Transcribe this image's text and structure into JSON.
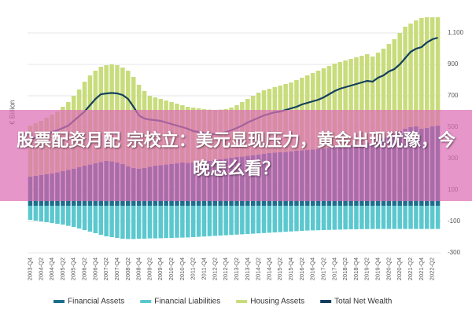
{
  "chart_data": {
    "type": "bar",
    "y_label": "€ Billion",
    "ylim": [
      -300,
      1200
    ],
    "yticks": [
      -300,
      -100,
      100,
      300,
      500,
      700,
      900,
      {
        "value": 1100,
        "label": "1,100"
      }
    ],
    "grid": true,
    "legend": "bottom",
    "categories": [
      "2003-Q4",
      null,
      "2004-Q2",
      null,
      "2004-Q4",
      null,
      "2005-Q2",
      null,
      "2005-Q4",
      null,
      "2006-Q2",
      null,
      "2006-Q4",
      null,
      "2007-Q2",
      null,
      "2007-Q4",
      null,
      "2008-Q2",
      null,
      "2008-Q4",
      null,
      "2009-Q2",
      null,
      "2009-Q4",
      null,
      "2010-Q2",
      null,
      "2010-Q4",
      null,
      "2011-Q2",
      null,
      "2011-Q4",
      null,
      "2012-Q2",
      null,
      "2012-Q4",
      null,
      "2013-Q2",
      null,
      "2013-Q4",
      null,
      "2014-Q2",
      null,
      "2014-Q4",
      null,
      "2015-Q2",
      null,
      "2015-Q4",
      null,
      "2016-Q2",
      null,
      "2016-Q4",
      null,
      "2017-Q2",
      null,
      "2017-Q4",
      null,
      "2018-Q2",
      null,
      "2018-Q4",
      null,
      "2019-Q2",
      null,
      "2019-Q4",
      null,
      "2020-Q2",
      null,
      "2020-Q4",
      null,
      "2021-Q2",
      null,
      "2021-Q4",
      null,
      "2022-Q2",
      null
    ],
    "series": [
      {
        "name": "Financial Assets",
        "color": "#1f6e8c",
        "type": "bar",
        "values": [
          185,
          190,
          195,
          200,
          205,
          212,
          220,
          228,
          235,
          245,
          255,
          262,
          270,
          278,
          285,
          282,
          275,
          265,
          250,
          240,
          235,
          240,
          248,
          255,
          258,
          262,
          265,
          270,
          275,
          272,
          275,
          278,
          282,
          285,
          290,
          295,
          300,
          305,
          310,
          312,
          318,
          322,
          325,
          330,
          335,
          338,
          340,
          342,
          345,
          350,
          352,
          355,
          358,
          362,
          365,
          368,
          372,
          375,
          380,
          385,
          390,
          395,
          400,
          385,
          410,
          430,
          445,
          460,
          475,
          490,
          500,
          505,
          490,
          495,
          505,
          510
        ]
      },
      {
        "name": "Financial Liabilities",
        "color": "#5bc8cf",
        "type": "bar",
        "values": [
          -90,
          -95,
          -100,
          -105,
          -110,
          -115,
          -120,
          -128,
          -135,
          -145,
          -155,
          -165,
          -175,
          -185,
          -195,
          -200,
          -205,
          -210,
          -212,
          -212,
          -210,
          -210,
          -208,
          -208,
          -207,
          -206,
          -205,
          -204,
          -203,
          -202,
          -200,
          -198,
          -196,
          -194,
          -192,
          -190,
          -188,
          -186,
          -184,
          -182,
          -180,
          -178,
          -176,
          -174,
          -172,
          -170,
          -168,
          -166,
          -164,
          -162,
          -160,
          -158,
          -157,
          -156,
          -155,
          -154,
          -153,
          -152,
          -151,
          -150,
          -150,
          -149,
          -149,
          -148,
          -148,
          -148,
          -148,
          -148,
          -148,
          -148,
          -148,
          -148,
          -148,
          -148,
          -148,
          -148
        ]
      },
      {
        "name": "Housing Assets",
        "color": "#c8dc7c",
        "type": "bar",
        "values": [
          325,
          335,
          345,
          360,
          375,
          388,
          410,
          432,
          465,
          495,
          535,
          568,
          590,
          607,
          610,
          618,
          620,
          615,
          610,
          580,
          535,
          490,
          452,
          435,
          422,
          408,
          395,
          380,
          365,
          358,
          350,
          342,
          333,
          327,
          320,
          317,
          315,
          320,
          330,
          348,
          362,
          378,
          395,
          405,
          410,
          417,
          425,
          433,
          440,
          450,
          463,
          475,
          487,
          498,
          510,
          522,
          533,
          540,
          545,
          550,
          555,
          560,
          565,
          565,
          565,
          570,
          585,
          600,
          625,
          650,
          660,
          675,
          705,
          705,
          695,
          690
        ]
      },
      {
        "name": "Total Net Wealth",
        "color": "#14405e",
        "type": "line",
        "values": [
          420,
          435,
          445,
          455,
          470,
          480,
          495,
          510,
          540,
          570,
          600,
          640,
          680,
          710,
          715,
          718,
          715,
          705,
          680,
          630,
          575,
          555,
          548,
          545,
          540,
          530,
          520,
          510,
          500,
          490,
          475,
          470,
          462,
          458,
          455,
          460,
          470,
          480,
          495,
          510,
          530,
          545,
          560,
          575,
          585,
          595,
          600,
          610,
          620,
          630,
          645,
          655,
          665,
          675,
          690,
          710,
          730,
          745,
          755,
          765,
          775,
          785,
          795,
          790,
          815,
          830,
          855,
          870,
          900,
          940,
          980,
          1000,
          1010,
          1040,
          1060,
          1070
        ]
      }
    ]
  },
  "overlay": {
    "headline": "股票配资月配 宗校立：美元显现压力，黄金出现犹豫，今晚怎么看？"
  }
}
